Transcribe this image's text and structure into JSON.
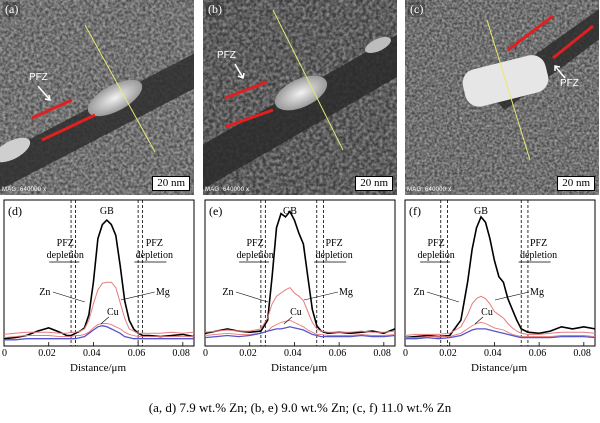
{
  "tem_panels": [
    {
      "label": "(a)",
      "mag": "MAG: 640000 x",
      "scale": "20 nm",
      "pfz": "PFZ"
    },
    {
      "label": "(b)",
      "mag": "MAG: 640000 x",
      "scale": "20 nm",
      "pfz": "PFZ"
    },
    {
      "label": "(c)",
      "mag": "MAG: 640000 x",
      "scale": "20 nm",
      "pfz": "PFZ"
    }
  ],
  "chart_data": [
    {
      "type": "line",
      "panel_label": "(d)",
      "xlabel": "Distance/μm",
      "xlim": [
        0,
        0.085
      ],
      "xticks": [
        "0",
        "0.02",
        "0.04",
        "0.06",
        "0.08"
      ],
      "annotations": {
        "gb": "GB",
        "pfz_left": "PFZ\ndepletion",
        "pfz_right": "PFZ\ndepletion"
      },
      "pfz_lines": [
        0.03,
        0.032,
        0.06,
        0.062
      ],
      "x": [
        0,
        0.005,
        0.01,
        0.015,
        0.02,
        0.025,
        0.028,
        0.03,
        0.032,
        0.034,
        0.036,
        0.038,
        0.04,
        0.042,
        0.044,
        0.046,
        0.048,
        0.05,
        0.052,
        0.054,
        0.056,
        0.058,
        0.06,
        0.062,
        0.065,
        0.07,
        0.075,
        0.08,
        0.085
      ],
      "series": [
        {
          "name": "GB",
          "color": "#000000",
          "values": [
            3,
            4,
            6,
            10,
            13,
            9,
            6,
            6,
            8,
            10,
            13,
            25,
            55,
            95,
            108,
            112,
            108,
            98,
            70,
            38,
            20,
            12,
            8,
            6,
            6,
            5,
            6,
            7,
            5
          ]
        },
        {
          "name": "Zn",
          "color": "#e87b7b",
          "values": [
            7,
            8,
            9,
            9,
            9,
            8,
            8,
            9,
            9,
            10,
            12,
            20,
            35,
            48,
            54,
            55,
            55,
            50,
            36,
            22,
            12,
            10,
            8,
            8,
            8,
            8,
            9,
            8,
            9
          ]
        },
        {
          "name": "Mg",
          "color": "#e87b7b",
          "values": [
            4,
            5,
            6,
            6,
            6,
            5,
            5,
            5,
            6,
            6,
            7,
            9,
            13,
            16,
            17,
            17,
            16,
            14,
            12,
            9,
            7,
            6,
            5,
            5,
            5,
            5,
            5,
            5,
            5
          ]
        },
        {
          "name": "Cu",
          "color": "#5555cc",
          "values": [
            2,
            2,
            3,
            3,
            3,
            3,
            3,
            3,
            3,
            4,
            5,
            8,
            11,
            14,
            15,
            14,
            12,
            10,
            8,
            5,
            4,
            3,
            3,
            3,
            3,
            3,
            3,
            3,
            3
          ]
        }
      ],
      "series_labels": {
        "zn": "Zn",
        "mg": "Mg",
        "cu": "Cu"
      }
    },
    {
      "type": "line",
      "panel_label": "(e)",
      "xlabel": "Distance/μm",
      "xlim": [
        0,
        0.085
      ],
      "xticks": [
        "0",
        "0.02",
        "0.04",
        "0.06",
        "0.08"
      ],
      "annotations": {
        "gb": "GB",
        "pfz_left": "PFZ\ndepletion",
        "pfz_right": "PFZ\ndepletion"
      },
      "pfz_lines": [
        0.025,
        0.027,
        0.05,
        0.053
      ],
      "x": [
        0,
        0.005,
        0.01,
        0.015,
        0.02,
        0.025,
        0.028,
        0.03,
        0.032,
        0.034,
        0.036,
        0.038,
        0.04,
        0.042,
        0.044,
        0.046,
        0.048,
        0.05,
        0.052,
        0.055,
        0.06,
        0.065,
        0.07,
        0.075,
        0.08,
        0.085
      ],
      "series": [
        {
          "name": "GB",
          "color": "#000000",
          "values": [
            8,
            10,
            12,
            10,
            9,
            10,
            20,
            60,
            105,
            118,
            115,
            120,
            112,
            100,
            90,
            60,
            30,
            15,
            10,
            8,
            9,
            8,
            9,
            10,
            8,
            12
          ]
        },
        {
          "name": "Zn",
          "color": "#e87b7b",
          "values": [
            9,
            10,
            11,
            10,
            10,
            12,
            22,
            35,
            42,
            45,
            48,
            50,
            45,
            42,
            38,
            28,
            18,
            12,
            10,
            9,
            9,
            9,
            10,
            9,
            9,
            10
          ]
        },
        {
          "name": "Mg",
          "color": "#e87b7b",
          "values": [
            6,
            7,
            8,
            7,
            7,
            8,
            10,
            14,
            16,
            18,
            19,
            20,
            18,
            16,
            14,
            11,
            9,
            7,
            7,
            6,
            6,
            6,
            7,
            6,
            6,
            7
          ]
        },
        {
          "name": "Cu",
          "color": "#5555cc",
          "values": [
            4,
            5,
            6,
            5,
            6,
            8,
            10,
            11,
            12,
            12,
            13,
            14,
            13,
            12,
            11,
            9,
            7,
            6,
            5,
            5,
            5,
            5,
            6,
            5,
            5,
            6
          ]
        }
      ],
      "series_labels": {
        "zn": "Zn",
        "mg": "Mg",
        "cu": "Cu"
      }
    },
    {
      "type": "line",
      "panel_label": "(f)",
      "xlabel": "Distance/μm",
      "xlim": [
        0,
        0.085
      ],
      "xticks": [
        "0",
        "0.02",
        "0.04",
        "0.06",
        "0.08"
      ],
      "annotations": {
        "gb": "GB",
        "pfz_left": "PFZ\ndepletion",
        "pfz_right": "PFZ\ndepletion"
      },
      "pfz_lines": [
        0.016,
        0.019,
        0.052,
        0.055
      ],
      "x": [
        0,
        0.005,
        0.01,
        0.015,
        0.02,
        0.025,
        0.028,
        0.03,
        0.032,
        0.034,
        0.036,
        0.038,
        0.04,
        0.042,
        0.044,
        0.046,
        0.048,
        0.05,
        0.052,
        0.055,
        0.06,
        0.065,
        0.07,
        0.075,
        0.08,
        0.085
      ],
      "series": [
        {
          "name": "GB",
          "color": "#000000",
          "values": [
            4,
            5,
            6,
            5,
            6,
            20,
            55,
            85,
            105,
            115,
            110,
            95,
            75,
            60,
            55,
            40,
            30,
            20,
            12,
            9,
            8,
            10,
            14,
            12,
            14,
            12
          ]
        },
        {
          "name": "Zn",
          "color": "#e87b7b",
          "values": [
            6,
            7,
            7,
            7,
            8,
            14,
            25,
            35,
            40,
            42,
            40,
            35,
            28,
            25,
            22,
            17,
            13,
            10,
            8,
            7,
            7,
            8,
            9,
            9,
            9,
            8
          ]
        },
        {
          "name": "Mg",
          "color": "#e87b7b",
          "values": [
            4,
            4,
            5,
            5,
            5,
            8,
            12,
            15,
            17,
            18,
            17,
            15,
            13,
            12,
            11,
            9,
            7,
            6,
            5,
            5,
            5,
            5,
            6,
            6,
            6,
            5
          ]
        },
        {
          "name": "Cu",
          "color": "#5555cc",
          "values": [
            3,
            3,
            4,
            3,
            4,
            6,
            9,
            11,
            12,
            12,
            12,
            11,
            10,
            9,
            8,
            7,
            6,
            5,
            4,
            4,
            4,
            4,
            5,
            5,
            5,
            4
          ]
        }
      ],
      "series_labels": {
        "zn": "Zn",
        "mg": "Mg",
        "cu": "Cu"
      }
    }
  ],
  "caption": "(a, d) 7.9 wt.% Zn; (b, e) 9.0 wt.% Zn; (c, f) 11.0 wt.% Zn"
}
